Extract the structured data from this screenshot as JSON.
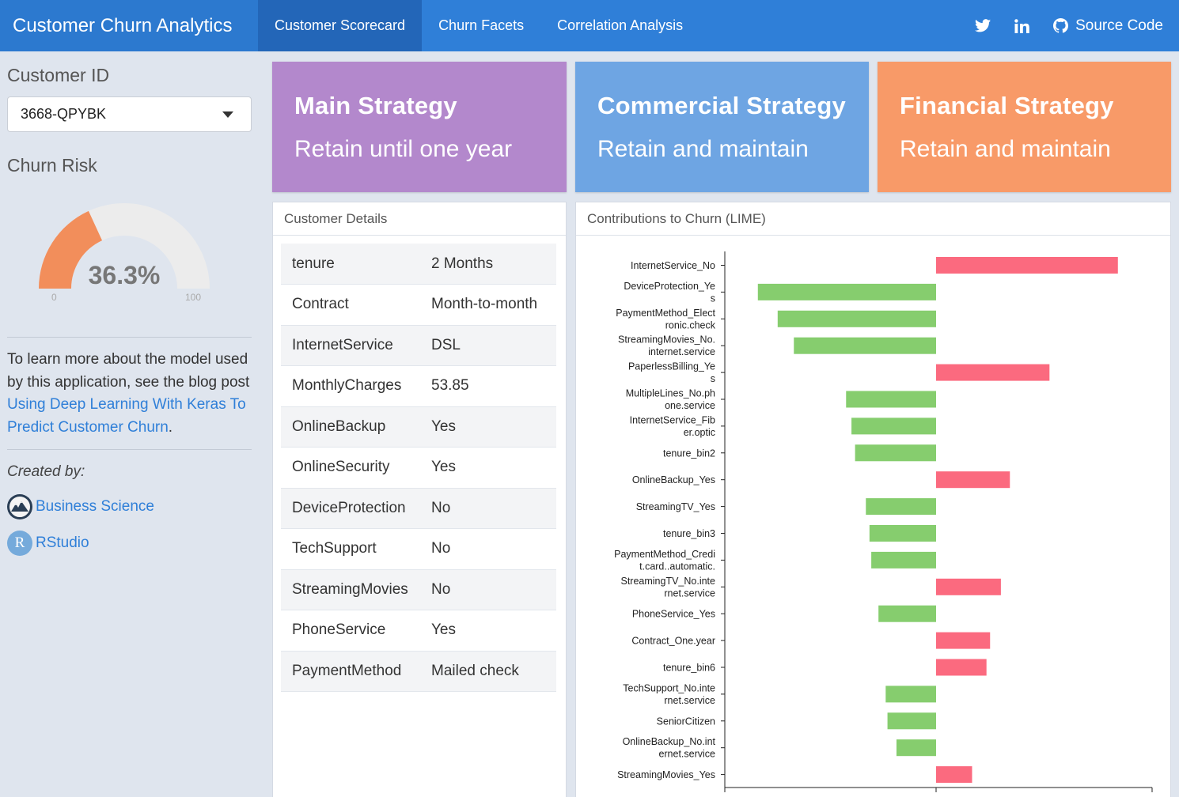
{
  "navbar": {
    "title": "Customer Churn Analytics",
    "tabs": [
      {
        "label": "Customer Scorecard",
        "active": true
      },
      {
        "label": "Churn Facets",
        "active": false
      },
      {
        "label": "Correlation Analysis",
        "active": false
      }
    ],
    "source_label": "Source Code",
    "icons": [
      "twitter-icon",
      "linkedin-icon",
      "github-icon"
    ]
  },
  "sidebar": {
    "customer_id_label": "Customer ID",
    "customer_id_value": "3668-QPYBK",
    "churn_risk_label": "Churn Risk",
    "gauge": {
      "value": 36.3,
      "value_label": "36.3%",
      "min": "0",
      "max": "100",
      "min_value": 0,
      "max_value": 100,
      "fill_color": "#f28e5b",
      "track_color": "#ececec"
    },
    "blurb_prefix": "To learn more about the model used by this application, see the blog post ",
    "blurb_link": "Using Deep Learning With Keras To Predict Customer Churn",
    "blurb_suffix": ".",
    "created_by": "Created by:",
    "credits": [
      {
        "label": "Business Science",
        "icon": "business-science-logo"
      },
      {
        "label": "RStudio",
        "icon": "rstudio-logo",
        "logo_letter": "R"
      }
    ]
  },
  "strategies": [
    {
      "title": "Main Strategy",
      "value": "Retain until one year",
      "color": "#b388cc"
    },
    {
      "title": "Commercial Strategy",
      "value": "Retain and maintain",
      "color": "#6ea5e3"
    },
    {
      "title": "Financial Strategy",
      "value": "Retain and maintain",
      "color": "#f89a68"
    }
  ],
  "details": {
    "title": "Customer Details",
    "rows": [
      {
        "key": "tenure",
        "value": "2 Months"
      },
      {
        "key": "Contract",
        "value": "Month-to-month"
      },
      {
        "key": "InternetService",
        "value": "DSL"
      },
      {
        "key": "MonthlyCharges",
        "value": "53.85"
      },
      {
        "key": "OnlineBackup",
        "value": "Yes"
      },
      {
        "key": "OnlineSecurity",
        "value": "Yes"
      },
      {
        "key": "DeviceProtection",
        "value": "No"
      },
      {
        "key": "TechSupport",
        "value": "No"
      },
      {
        "key": "StreamingMovies",
        "value": "No"
      },
      {
        "key": "PhoneService",
        "value": "Yes"
      },
      {
        "key": "PaymentMethod",
        "value": "Mailed check"
      }
    ]
  },
  "lime": {
    "title": "Contributions to Churn (LIME)"
  },
  "chart_data": {
    "type": "bar",
    "orientation": "horizontal",
    "title": "Contributions to Churn (LIME)",
    "xlabel": "",
    "ylabel": "",
    "xlim": [
      -0.12,
      0.12
    ],
    "positive_color": "#fb6a7f",
    "negative_color": "#86cd6e",
    "categories": [
      [
        "InternetService_No"
      ],
      [
        "DeviceProtection_Ye",
        "s"
      ],
      [
        "PaymentMethod_Elect",
        "ronic.check"
      ],
      [
        "StreamingMovies_No.",
        "internet.service"
      ],
      [
        "PaperlessBilling_Ye",
        "s"
      ],
      [
        "MultipleLines_No.ph",
        "one.service"
      ],
      [
        "InternetService_Fib",
        "er.optic"
      ],
      [
        "tenure_bin2"
      ],
      [
        "OnlineBackup_Yes"
      ],
      [
        "StreamingTV_Yes"
      ],
      [
        "tenure_bin3"
      ],
      [
        "PaymentMethod_Credi",
        "t.card..automatic."
      ],
      [
        "StreamingTV_No.inte",
        "rnet.service"
      ],
      [
        "PhoneService_Yes"
      ],
      [
        "Contract_One.year"
      ],
      [
        "tenure_bin6"
      ],
      [
        "TechSupport_No.inte",
        "rnet.service"
      ],
      [
        "SeniorCitizen"
      ],
      [
        "OnlineBackup_No.int",
        "ernet.service"
      ],
      [
        "StreamingMovies_Yes"
      ]
    ],
    "values": [
      0.101,
      -0.099,
      -0.088,
      -0.079,
      0.063,
      -0.05,
      -0.047,
      -0.045,
      0.041,
      -0.039,
      -0.037,
      -0.036,
      0.036,
      -0.032,
      0.03,
      0.028,
      -0.028,
      -0.027,
      -0.022,
      0.02
    ]
  }
}
